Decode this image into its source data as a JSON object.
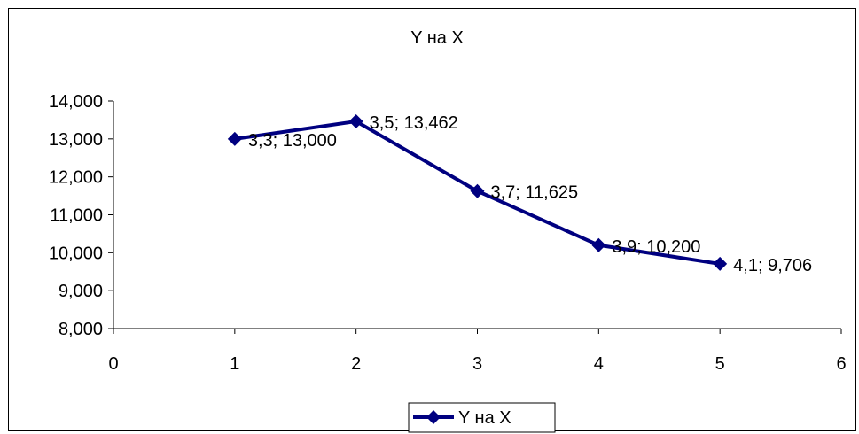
{
  "chart_data": {
    "type": "line",
    "title": "Y на X",
    "xlabel": "",
    "ylabel": "",
    "xlim": [
      0,
      6
    ],
    "ylim": [
      8000,
      14000
    ],
    "x_ticks": [
      0,
      1,
      2,
      3,
      4,
      5,
      6
    ],
    "y_ticks": [
      8000,
      9000,
      10000,
      11000,
      12000,
      13000,
      14000
    ],
    "x_tick_labels": [
      "0",
      "1",
      "2",
      "3",
      "4",
      "5",
      "6"
    ],
    "y_tick_labels": [
      "8,000",
      "9,000",
      "10,000",
      "11,000",
      "12,000",
      "13,000",
      "14,000"
    ],
    "grid": false,
    "legend_position": "bottom",
    "series": [
      {
        "name": "Y на X",
        "color": "#000080",
        "marker": "diamond",
        "x": [
          1,
          2,
          3,
          4,
          5
        ],
        "y": [
          13000,
          13462,
          11625,
          10200,
          9706
        ],
        "data_labels": [
          "3,3; 13,000",
          "3,5; 13,462",
          "3,7; 11,625",
          "3,9; 10,200",
          "4,1; 9,706"
        ]
      }
    ]
  }
}
